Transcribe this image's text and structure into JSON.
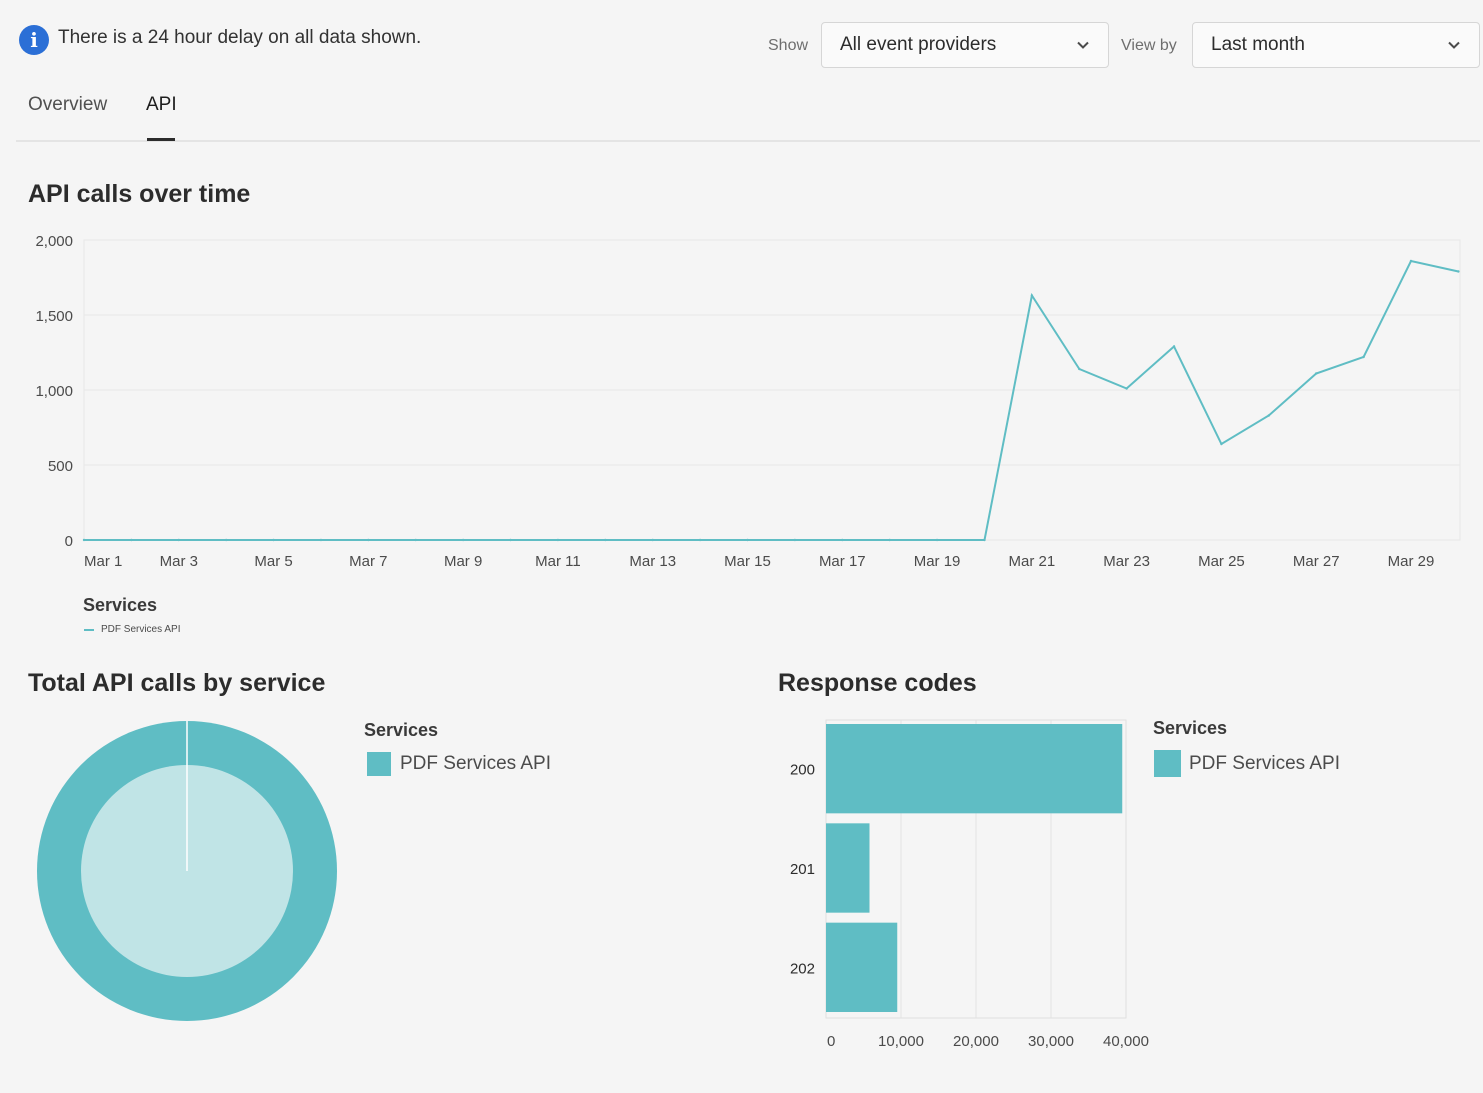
{
  "banner": {
    "icon": "info-icon",
    "text": "There is a 24 hour delay on all data shown."
  },
  "filters": {
    "show_label": "Show",
    "show_value": "All event providers",
    "viewby_label": "View by",
    "viewby_value": "Last month"
  },
  "tabs": [
    {
      "label": "Overview",
      "active": false
    },
    {
      "label": "API",
      "active": true
    }
  ],
  "colors": {
    "accent": "#5fbdc4",
    "accent_light": "#c0e4e6",
    "info_blue": "#2b6fd6"
  },
  "line_chart": {
    "title": "API calls over time",
    "legend_title": "Services",
    "legend_label": "PDF Services API"
  },
  "donut_chart": {
    "title": "Total API calls by service",
    "legend_title": "Services",
    "legend_label": "PDF Services API"
  },
  "bar_chart": {
    "title": "Response codes",
    "legend_title": "Services",
    "legend_label": "PDF Services API"
  },
  "chart_data": [
    {
      "type": "line",
      "title": "API calls over time",
      "series": [
        {
          "name": "PDF Services API",
          "values": [
            0,
            0,
            0,
            0,
            0,
            0,
            0,
            0,
            0,
            0,
            0,
            0,
            0,
            0,
            0,
            0,
            0,
            0,
            0,
            0,
            1630,
            1140,
            1010,
            1290,
            640,
            830,
            1110,
            1220,
            1860,
            1790
          ]
        }
      ],
      "x": [
        "Mar 1",
        "Mar 2",
        "Mar 3",
        "Mar 4",
        "Mar 5",
        "Mar 6",
        "Mar 7",
        "Mar 8",
        "Mar 9",
        "Mar 10",
        "Mar 11",
        "Mar 12",
        "Mar 13",
        "Mar 14",
        "Mar 15",
        "Mar 16",
        "Mar 17",
        "Mar 18",
        "Mar 19",
        "Mar 20",
        "Mar 21",
        "Mar 22",
        "Mar 23",
        "Mar 24",
        "Mar 25",
        "Mar 26",
        "Mar 27",
        "Mar 28",
        "Mar 29",
        "Mar 30"
      ],
      "xtick_labels": [
        "Mar  1",
        "Mar  3",
        "Mar  5",
        "Mar  7",
        "Mar  9",
        "Mar 11",
        "Mar 13",
        "Mar 15",
        "Mar 17",
        "Mar 19",
        "Mar 21",
        "Mar 23",
        "Mar 25",
        "Mar 27",
        "Mar 29"
      ],
      "ytick_labels": [
        "0",
        "500",
        "1,000",
        "1,500",
        "2,000"
      ],
      "ylim": [
        0,
        2000
      ],
      "grid": true,
      "legend": "bottom-left"
    },
    {
      "type": "pie",
      "title": "Total API calls by service",
      "categories": [
        "PDF Services API"
      ],
      "values": [
        100
      ],
      "donut": true,
      "legend": "right"
    },
    {
      "type": "bar",
      "orientation": "horizontal",
      "title": "Response codes",
      "categories": [
        "200",
        "201",
        "202"
      ],
      "series": [
        {
          "name": "PDF Services API",
          "values": [
            39500,
            5800,
            9500
          ]
        }
      ],
      "xtick_labels": [
        "0",
        "10,000",
        "20,000",
        "30,000",
        "40,000"
      ],
      "xlim": [
        0,
        40000
      ],
      "grid": true,
      "legend": "right"
    }
  ]
}
